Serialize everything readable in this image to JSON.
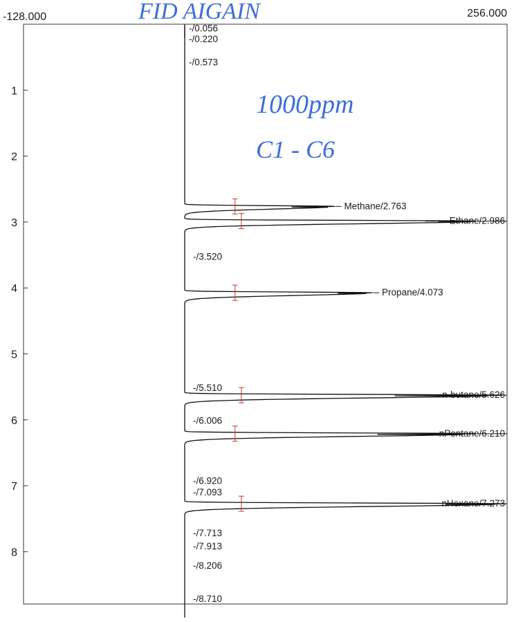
{
  "handwritten": {
    "title": "FID AIGAIN",
    "concentration": "1000ppm",
    "range": "C1 - C6",
    "ink_color": "#3d6fd6"
  },
  "chart_data": {
    "type": "line",
    "orientation": "vertical-time",
    "x_axis": {
      "min_label": "-128.000",
      "max_label": "256.000",
      "range": [
        -128,
        256
      ]
    },
    "y_axis": {
      "range": [
        0,
        9
      ],
      "ticks": [
        1,
        2,
        3,
        4,
        5,
        6,
        7,
        8
      ],
      "tick_labels": [
        "1",
        "2",
        "3",
        "4",
        "5",
        "6",
        "7",
        "8"
      ]
    },
    "baseline": 0,
    "peaks": [
      {
        "label": "-/0.056",
        "time": 0.056,
        "height": 0,
        "named": false
      },
      {
        "label": "-/0.220",
        "time": 0.22,
        "height": 0,
        "named": false
      },
      {
        "label": "-/0.573",
        "time": 0.573,
        "height": 0,
        "named": false
      },
      {
        "label": "Methane/2.763",
        "time": 2.763,
        "height": 120,
        "named": true
      },
      {
        "label": "Ethane/2.986",
        "time": 2.986,
        "height": 235,
        "named": true
      },
      {
        "label": "-/3.520",
        "time": 3.52,
        "height": 0,
        "named": false
      },
      {
        "label": "Propane/4.073",
        "time": 4.073,
        "height": 150,
        "named": true
      },
      {
        "label": "-/5.510",
        "time": 5.51,
        "height": 0,
        "named": false
      },
      {
        "label": "n-butane/5.626",
        "time": 5.626,
        "height": 256,
        "named": true
      },
      {
        "label": "-/6.006",
        "time": 6.006,
        "height": 0,
        "named": false
      },
      {
        "label": "nPentane/6.210",
        "time": 6.21,
        "height": 235,
        "named": true
      },
      {
        "label": "-/6.920",
        "time": 6.92,
        "height": 0,
        "named": false
      },
      {
        "label": "-/7.093",
        "time": 7.093,
        "height": 0,
        "named": false
      },
      {
        "label": "nHexane/7.273",
        "time": 7.273,
        "height": 256,
        "named": true
      },
      {
        "label": "-/7.713",
        "time": 7.713,
        "height": 0,
        "named": false
      },
      {
        "label": "-/7.913",
        "time": 7.913,
        "height": 0,
        "named": false
      },
      {
        "label": "-/8.206",
        "time": 8.206,
        "height": 0,
        "named": false
      },
      {
        "label": "-/8.710",
        "time": 8.71,
        "height": 0,
        "named": false
      }
    ],
    "integration_markers": [
      {
        "time": 2.763,
        "signal": 40
      },
      {
        "time": 2.986,
        "signal": 45
      },
      {
        "time": 4.073,
        "signal": 40
      },
      {
        "time": 5.626,
        "signal": 45
      },
      {
        "time": 6.21,
        "signal": 40
      },
      {
        "time": 7.273,
        "signal": 45
      }
    ],
    "colors": {
      "trace": "#111111",
      "axis": "#333333",
      "marker": "#c0392b"
    }
  }
}
